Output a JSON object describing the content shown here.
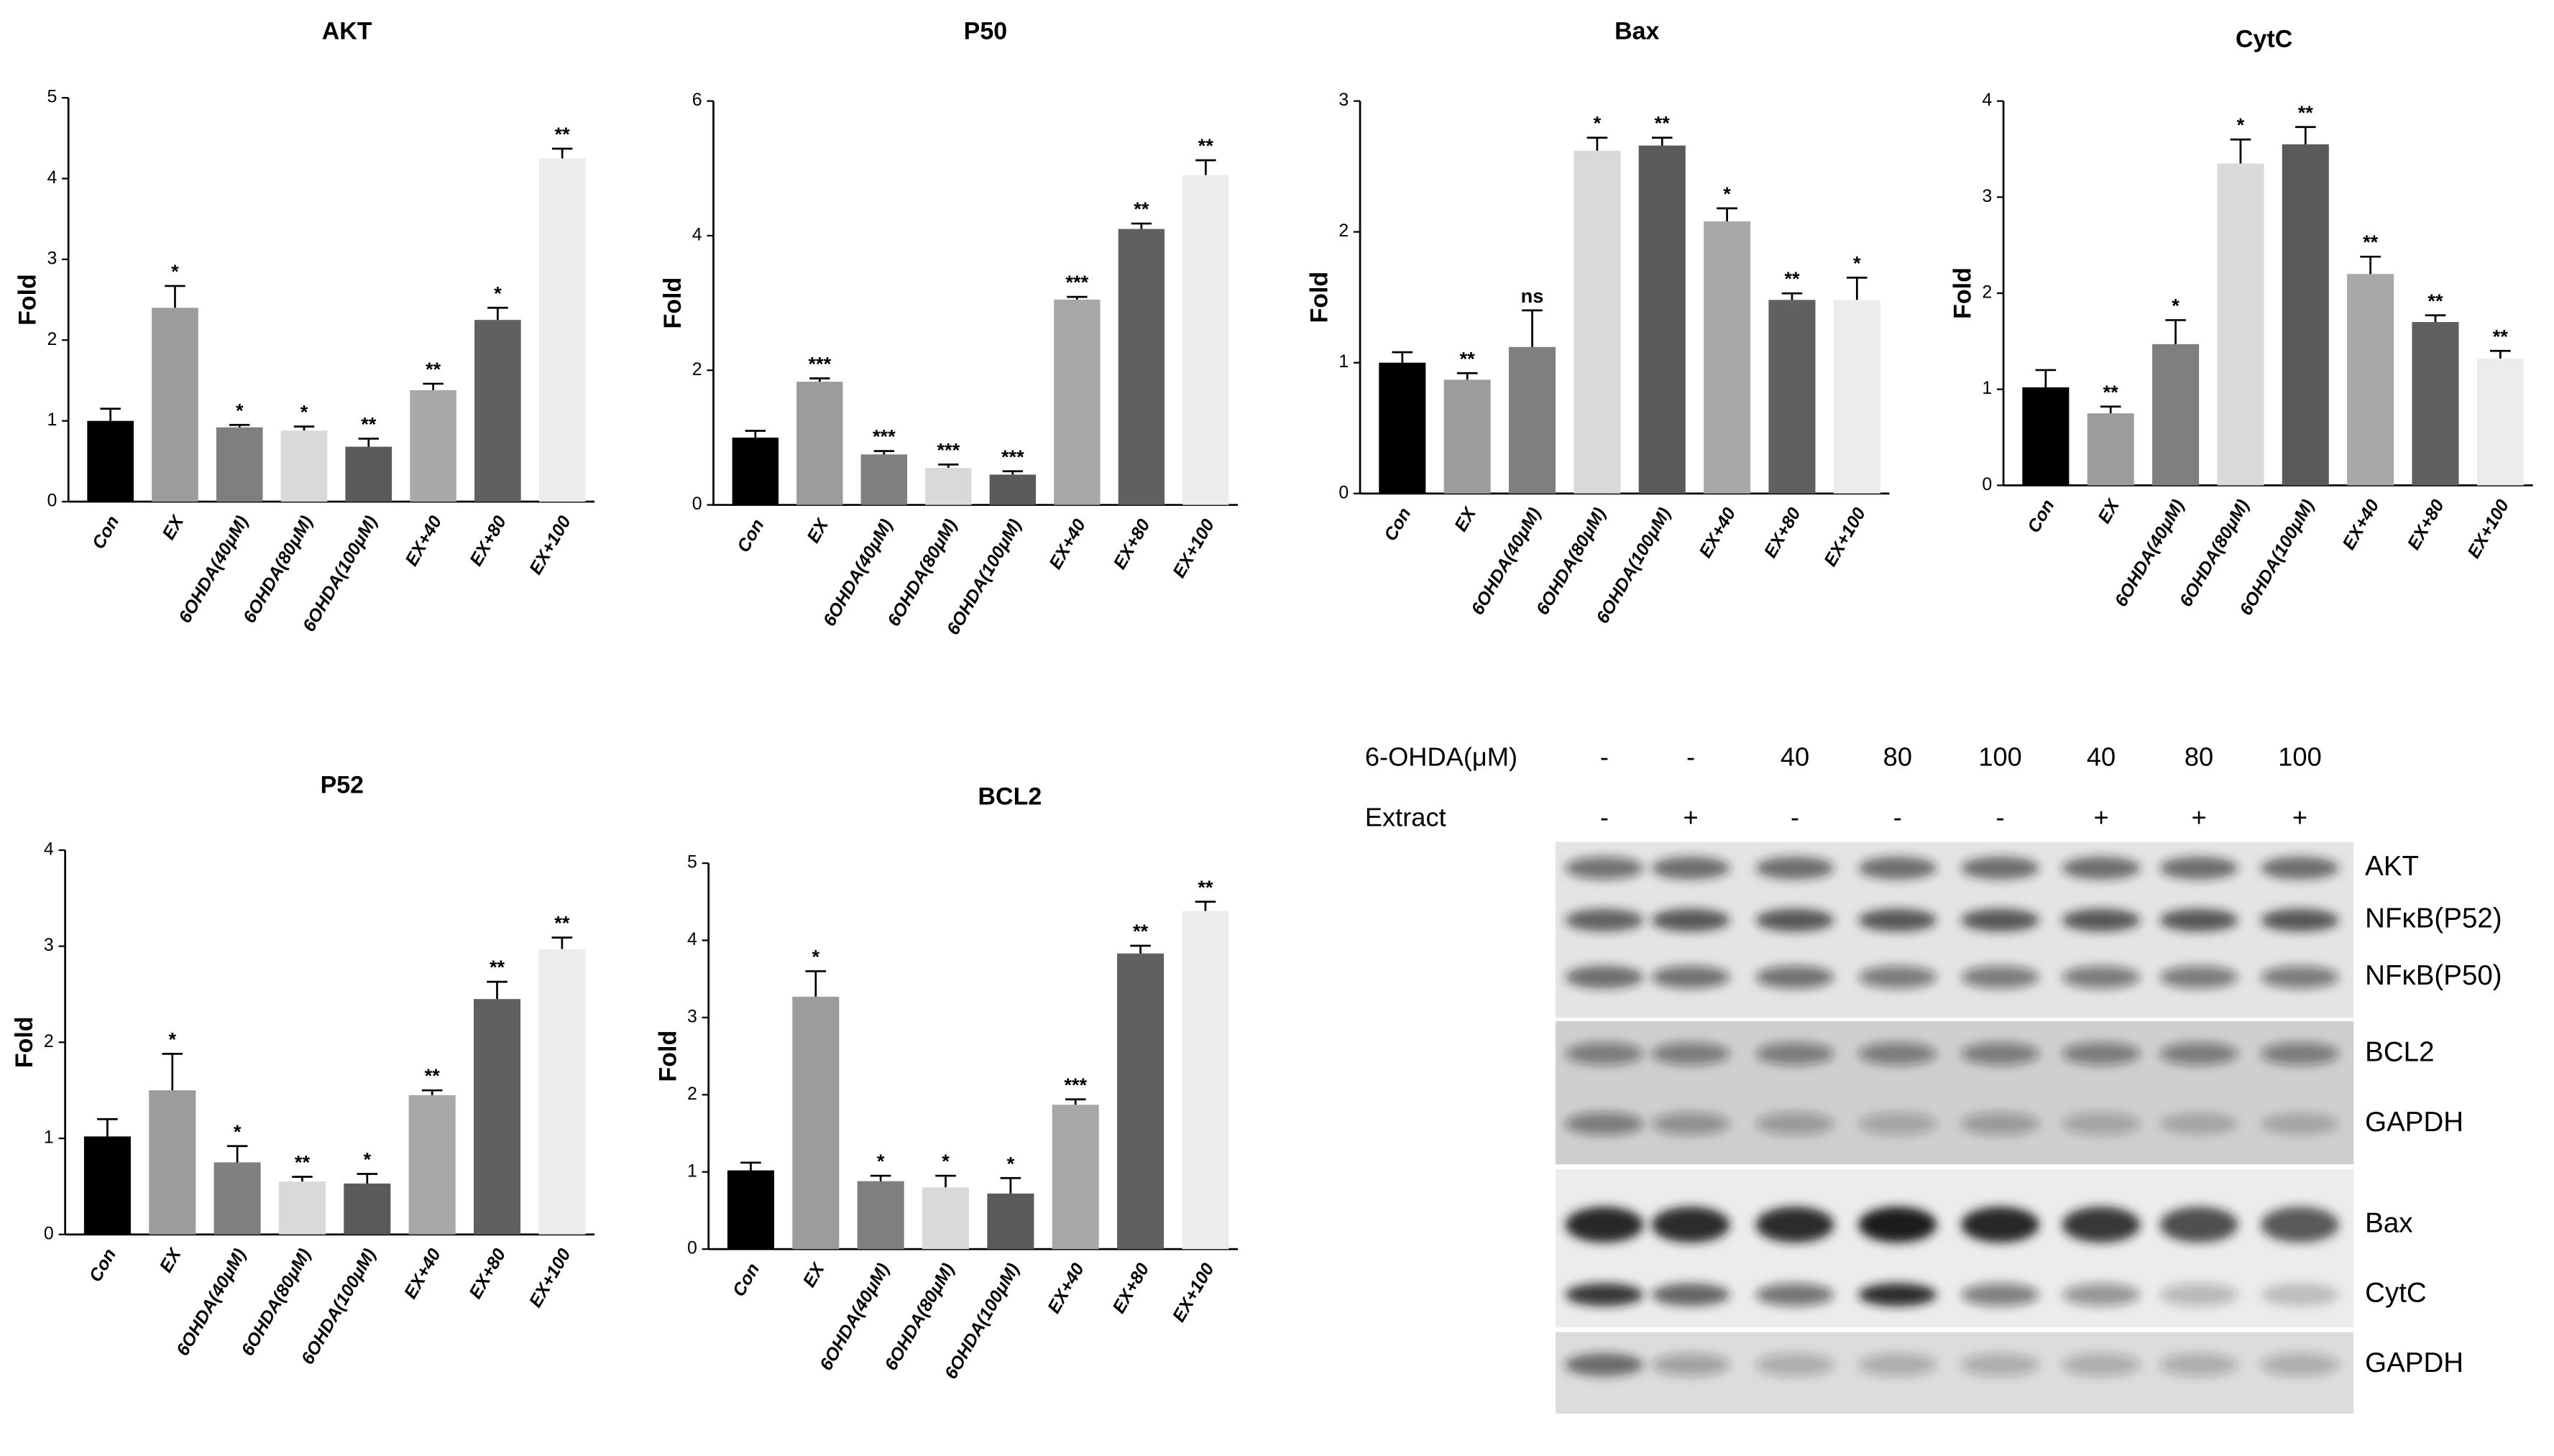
{
  "chart_data": [
    {
      "type": "bar",
      "title": "AKT",
      "y_label": "Fold",
      "categories": [
        "Con",
        "EX",
        "6OHDA(40μM)",
        "6OHDA(80μM)",
        "6OHDA(100μM)",
        "EX+40",
        "EX+80",
        "EX+100"
      ],
      "values": [
        1.0,
        2.4,
        0.92,
        0.88,
        0.68,
        1.38,
        2.25,
        4.25
      ],
      "errors": [
        0.15,
        0.27,
        0.03,
        0.05,
        0.1,
        0.08,
        0.15,
        0.12
      ],
      "annotations": [
        null,
        "*",
        "*",
        "*",
        "**",
        "**",
        "*",
        "**"
      ],
      "colors": [
        "#000000",
        "#9c9c9c",
        "#7f7f7f",
        "#d9d9d9",
        "#5a5a5a",
        "#a8a8a8",
        "#606060",
        "#ececec"
      ],
      "ylim": [
        0,
        5
      ],
      "yticks": [
        0,
        1,
        2,
        3,
        4,
        5
      ]
    },
    {
      "type": "bar",
      "title": "P50",
      "y_label": "Fold",
      "categories": [
        "Con",
        "EX",
        "6OHDA(40μM)",
        "6OHDA(80μM)",
        "6OHDA(100μM)",
        "EX+40",
        "EX+80",
        "EX+100"
      ],
      "values": [
        1.0,
        1.83,
        0.75,
        0.55,
        0.45,
        3.05,
        4.1,
        4.9
      ],
      "errors": [
        0.1,
        0.05,
        0.05,
        0.05,
        0.05,
        0.04,
        0.08,
        0.22
      ],
      "annotations": [
        null,
        "***",
        "***",
        "***",
        "***",
        "***",
        "**",
        "**"
      ],
      "colors": [
        "#000000",
        "#9c9c9c",
        "#7f7f7f",
        "#d9d9d9",
        "#5a5a5a",
        "#a8a8a8",
        "#606060",
        "#ececec"
      ],
      "ylim": [
        0,
        6
      ],
      "yticks": [
        0,
        2,
        4,
        6
      ]
    },
    {
      "type": "bar",
      "title": "Bax",
      "y_label": "Fold",
      "categories": [
        "Con",
        "EX",
        "6OHDA(40μM)",
        "6OHDA(80μM)",
        "6OHDA(100μM)",
        "EX+40",
        "EX+80",
        "EX+100"
      ],
      "values": [
        1.0,
        0.87,
        1.12,
        2.62,
        2.66,
        2.08,
        1.48,
        1.48
      ],
      "errors": [
        0.08,
        0.05,
        0.28,
        0.1,
        0.06,
        0.1,
        0.05,
        0.17
      ],
      "annotations": [
        null,
        "**",
        "ns",
        "*",
        "**",
        "*",
        "**",
        "*"
      ],
      "colors": [
        "#000000",
        "#9c9c9c",
        "#7f7f7f",
        "#d9d9d9",
        "#5a5a5a",
        "#a8a8a8",
        "#606060",
        "#ececec"
      ],
      "ylim": [
        0,
        3
      ],
      "yticks": [
        0,
        1,
        2,
        3
      ]
    },
    {
      "type": "bar",
      "title": "CytC",
      "y_label": "Fold",
      "categories": [
        "Con",
        "EX",
        "6OHDA(40μM)",
        "6OHDA(80μM)",
        "6OHDA(100μM)",
        "EX+40",
        "EX+80",
        "EX+100"
      ],
      "values": [
        1.02,
        0.75,
        1.47,
        3.35,
        3.55,
        2.2,
        1.7,
        1.32
      ],
      "errors": [
        0.18,
        0.07,
        0.25,
        0.25,
        0.18,
        0.18,
        0.07,
        0.08
      ],
      "annotations": [
        null,
        "**",
        "*",
        "*",
        "**",
        "**",
        "**",
        "**"
      ],
      "colors": [
        "#000000",
        "#9c9c9c",
        "#7f7f7f",
        "#d9d9d9",
        "#5a5a5a",
        "#a8a8a8",
        "#606060",
        "#ececec"
      ],
      "ylim": [
        0,
        4
      ],
      "yticks": [
        0,
        1,
        2,
        3,
        4
      ]
    },
    {
      "type": "bar",
      "title": "P52",
      "y_label": "Fold",
      "categories": [
        "Con",
        "EX",
        "6OHDA(40μM)",
        "6OHDA(80μM)",
        "6OHDA(100μM)",
        "EX+40",
        "EX+80",
        "EX+100"
      ],
      "values": [
        1.02,
        1.5,
        0.75,
        0.55,
        0.53,
        1.45,
        2.45,
        2.97
      ],
      "errors": [
        0.18,
        0.38,
        0.17,
        0.05,
        0.1,
        0.05,
        0.18,
        0.12
      ],
      "annotations": [
        null,
        "*",
        "*",
        "**",
        "*",
        "**",
        "**",
        "**"
      ],
      "colors": [
        "#000000",
        "#9c9c9c",
        "#7f7f7f",
        "#d9d9d9",
        "#5a5a5a",
        "#a8a8a8",
        "#606060",
        "#ececec"
      ],
      "ylim": [
        0,
        4
      ],
      "yticks": [
        0,
        1,
        2,
        3,
        4
      ]
    },
    {
      "type": "bar",
      "title": "BCL2",
      "y_label": "Fold",
      "categories": [
        "Con",
        "EX",
        "6OHDA(40μM)",
        "6OHDA(80μM)",
        "6OHDA(100μM)",
        "EX+40",
        "EX+80",
        "EX+100"
      ],
      "values": [
        1.02,
        3.27,
        0.88,
        0.8,
        0.72,
        1.87,
        3.83,
        4.38
      ],
      "errors": [
        0.1,
        0.33,
        0.07,
        0.15,
        0.2,
        0.07,
        0.1,
        0.12
      ],
      "annotations": [
        null,
        "*",
        "*",
        "*",
        "*",
        "***",
        "**",
        "**"
      ],
      "colors": [
        "#000000",
        "#9c9c9c",
        "#7f7f7f",
        "#d9d9d9",
        "#5a5a5a",
        "#a8a8a8",
        "#606060",
        "#ececec"
      ],
      "ylim": [
        0,
        5
      ],
      "yticks": [
        0,
        1,
        2,
        3,
        4,
        5
      ]
    }
  ],
  "blot": {
    "treatments": [
      {
        "label": "6-OHDA(μM)",
        "lanes": [
          "-",
          "-",
          "40",
          "80",
          "100",
          "40",
          "80",
          "100"
        ]
      },
      {
        "label": "Extract",
        "lanes": [
          "-",
          "+",
          "-",
          "-",
          "-",
          "+",
          "+",
          "+"
        ]
      }
    ],
    "bands": [
      "AKT",
      "NFκB(P52)",
      "NFκB(P50)",
      "BCL2",
      "GAPDH",
      "Bax",
      "CytC",
      "GAPDH"
    ]
  }
}
